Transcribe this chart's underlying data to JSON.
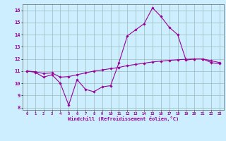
{
  "xlabel": "Windchill (Refroidissement éolien,°C)",
  "x": [
    0,
    1,
    2,
    3,
    4,
    5,
    6,
    7,
    8,
    9,
    10,
    11,
    12,
    13,
    14,
    15,
    16,
    17,
    18,
    19,
    20,
    21,
    22,
    23
  ],
  "line1": [
    11.0,
    10.9,
    10.5,
    10.7,
    10.0,
    8.2,
    10.3,
    9.5,
    9.3,
    9.7,
    9.8,
    11.7,
    13.9,
    14.4,
    14.9,
    16.2,
    15.5,
    14.6,
    14.0,
    11.9,
    12.0,
    12.0,
    11.7,
    11.6
  ],
  "line2": [
    11.0,
    10.95,
    10.8,
    10.85,
    10.5,
    10.55,
    10.7,
    10.85,
    11.0,
    11.1,
    11.2,
    11.3,
    11.45,
    11.55,
    11.65,
    11.75,
    11.82,
    11.88,
    11.93,
    11.97,
    12.0,
    12.0,
    11.85,
    11.7
  ],
  "line_color": "#990099",
  "bg_color": "#cceeff",
  "grid_color": "#99bbbb",
  "ylim": [
    7.8,
    16.5
  ],
  "xlim": [
    -0.5,
    23.5
  ],
  "yticks": [
    8,
    9,
    10,
    11,
    12,
    13,
    14,
    15,
    16
  ],
  "xticks": [
    0,
    1,
    2,
    3,
    4,
    5,
    6,
    7,
    8,
    9,
    10,
    11,
    12,
    13,
    14,
    15,
    16,
    17,
    18,
    19,
    20,
    21,
    22,
    23
  ]
}
